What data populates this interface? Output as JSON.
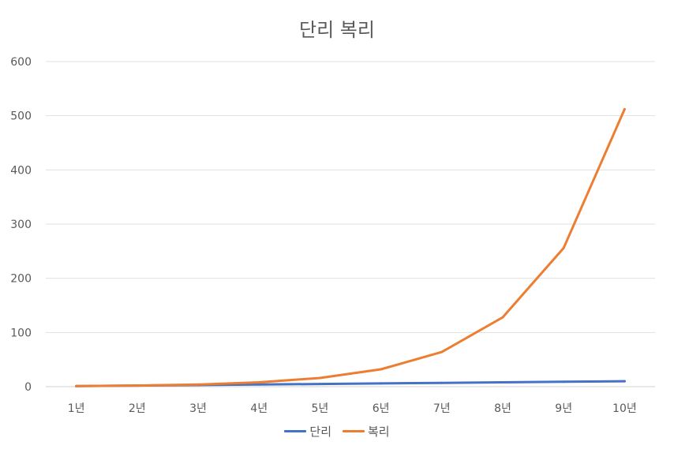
{
  "chart_data": {
    "type": "line",
    "title": "단리 복리",
    "xlabel": "",
    "ylabel": "",
    "categories": [
      "1년",
      "2년",
      "3년",
      "4년",
      "5년",
      "6년",
      "7년",
      "8년",
      "9년",
      "10년"
    ],
    "ylim": [
      0,
      600
    ],
    "yticks": [
      0,
      100,
      200,
      300,
      400,
      500,
      600
    ],
    "grid": true,
    "legend_position": "bottom",
    "series": [
      {
        "name": "단리",
        "color": "#4472c4",
        "values": [
          1,
          2,
          3,
          4,
          5,
          6,
          7,
          8,
          9,
          10
        ]
      },
      {
        "name": "복리",
        "color": "#ed7d31",
        "values": [
          1,
          2,
          4,
          8,
          16,
          32,
          64,
          128,
          256,
          512
        ]
      }
    ]
  }
}
